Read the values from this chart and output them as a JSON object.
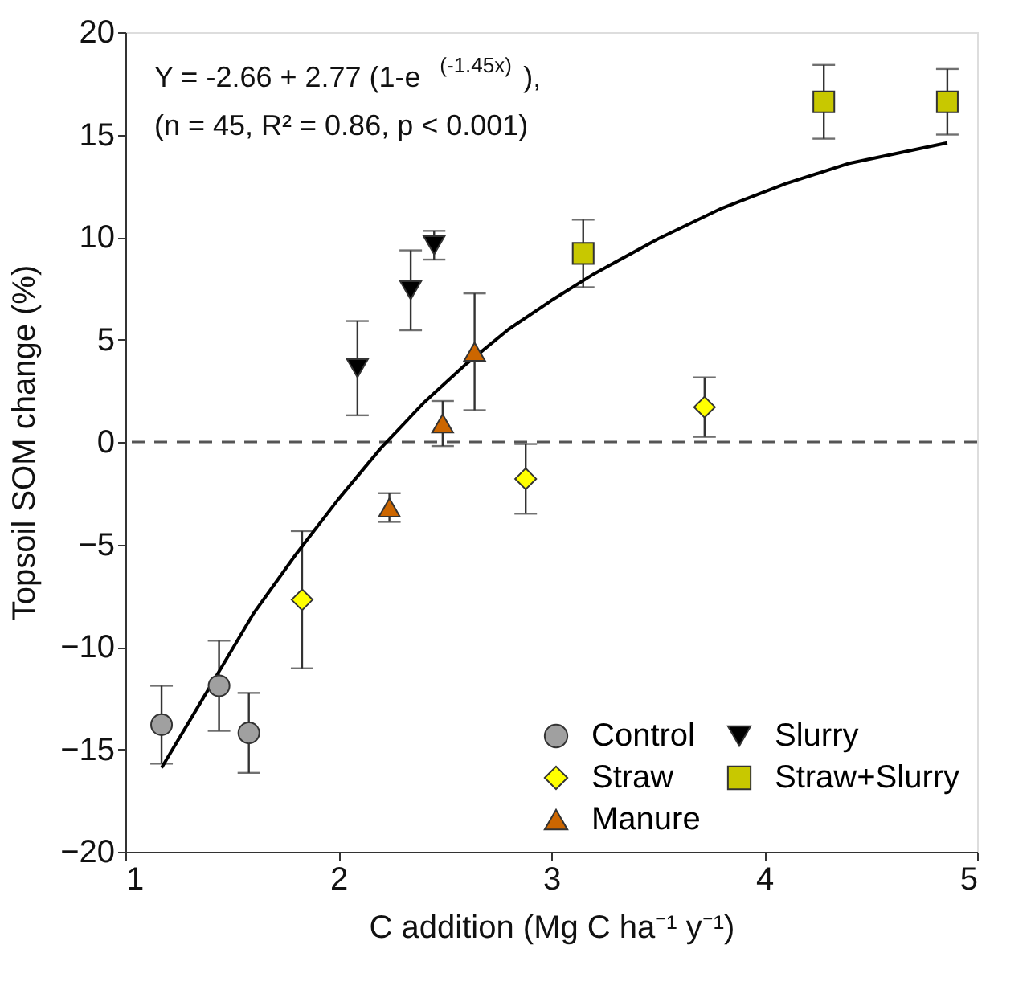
{
  "chart_data": {
    "type": "scatter",
    "xlabel": "C addition (Mg C ha⁻¹ y⁻¹)",
    "ylabel": "Topsoil SOM change (%)",
    "xlim": [
      1,
      5
    ],
    "xticks": [
      1,
      2,
      3,
      4,
      5
    ],
    "ylim": [
      -20,
      20
    ],
    "yticks": [
      -20,
      -15,
      -10,
      -5,
      0,
      5,
      10,
      15,
      20
    ],
    "grid": false,
    "legend": "bottom right",
    "annotations": [
      "Y = -2.66 + 2.77 (1-e$^{(-1.45x)}$),",
      "(n = 45, R² = 0.86, p < 0.001)"
    ],
    "ref_lines": [
      {
        "axis": "y",
        "value": 0,
        "label": null,
        "color": "#555555",
        "line_style": "dashed"
      }
    ],
    "series": [
      {
        "name": "Control",
        "color": "#a0a0a0",
        "marker": "circle",
        "x": [
          1.17,
          1.44,
          1.58
        ],
        "values": [
          -13.8,
          -11.9,
          -14.2
        ],
        "errors": [
          1.9,
          2.2,
          1.95
        ]
      },
      {
        "name": "Straw",
        "color": "#ffff00",
        "marker": "diamond",
        "x": [
          1.83,
          2.88,
          3.72
        ],
        "values": [
          -7.7,
          -1.8,
          1.7
        ],
        "errors": [
          3.35,
          1.7,
          1.45
        ]
      },
      {
        "name": "Manure",
        "color": "#cc6600",
        "marker": "triangle",
        "x": [
          2.24,
          2.49,
          2.64
        ],
        "values": [
          -3.2,
          0.9,
          4.4
        ],
        "errors": [
          0.7,
          1.1,
          2.85
        ]
      },
      {
        "name": "Slurry",
        "color": "#000000",
        "marker": "triangle-down",
        "x": [
          2.09,
          2.34,
          2.45
        ],
        "values": [
          3.6,
          7.4,
          9.6
        ],
        "errors": [
          2.3,
          1.95,
          0.7
        ]
      },
      {
        "name": "Straw+Slurry",
        "color": "#c8c800",
        "marker": "square",
        "x": [
          3.15,
          4.28,
          4.86
        ],
        "values": [
          9.2,
          16.6,
          16.6
        ],
        "errors": [
          1.65,
          1.8,
          1.6
        ]
      },
      {
        "type": "line",
        "color": "#000000",
        "line_style": "solid",
        "marker": "none",
        "x": [
          1.17,
          1.4,
          1.6,
          1.8,
          2.0,
          2.2,
          2.4,
          2.6,
          2.8,
          3.0,
          3.2,
          3.5,
          3.8,
          4.1,
          4.4,
          4.86
        ],
        "values": [
          -15.9,
          -11.9,
          -8.4,
          -5.5,
          -2.8,
          -0.3,
          1.9,
          3.8,
          5.5,
          6.9,
          8.2,
          9.9,
          11.4,
          12.6,
          13.6,
          14.6
        ]
      }
    ]
  }
}
